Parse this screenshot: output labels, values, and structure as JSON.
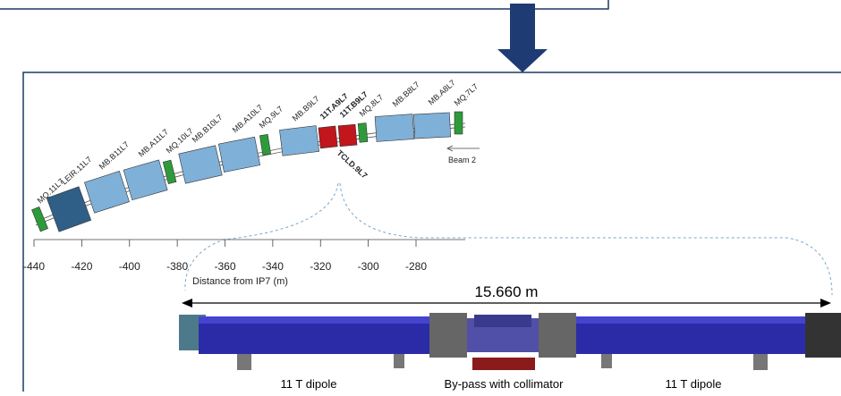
{
  "diagram": {
    "magnets": [
      "MQ.11L7",
      "LEIR.11L7",
      "MB.B11L7",
      "MB.A11L7",
      "MQ.10L7",
      "MB.B10L7",
      "MB.A10L7",
      "MQ.9L7",
      "MB.B9L7",
      "11T.A9L7",
      "11T.B9L7",
      "MQ.8L7",
      "MB.B8L7",
      "MB.A8L7",
      "MQ.7L7"
    ],
    "tcld": "TCLD.9L7",
    "beam": "Beam 2",
    "axis": {
      "ticks": [
        -440,
        -420,
        -400,
        -380,
        -360,
        -340,
        -320,
        -300,
        -280
      ],
      "label": "Distance from IP7 (m)"
    },
    "dimension": "15.660 m",
    "sections": [
      "11 T dipole",
      "By-pass with collimator",
      "11 T dipole"
    ]
  }
}
